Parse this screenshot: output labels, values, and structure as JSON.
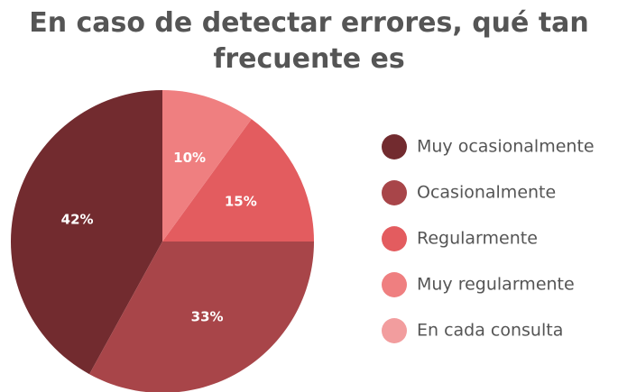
{
  "chart_data": {
    "type": "pie",
    "title": "En caso de detectar errores, qué tan frecuente es",
    "categories": [
      "Muy ocasionalmente",
      "Ocasionalmente",
      "Regularmente",
      "Muy regularmente",
      "En cada consulta"
    ],
    "values": [
      42,
      33,
      15,
      10,
      0
    ],
    "value_labels": [
      "42%",
      "33%",
      "15%",
      "10%",
      null
    ],
    "colors": [
      "#722b2f",
      "#a84549",
      "#e35c5f",
      "#ef7f80",
      "#f29d9e"
    ],
    "legend": "right"
  }
}
